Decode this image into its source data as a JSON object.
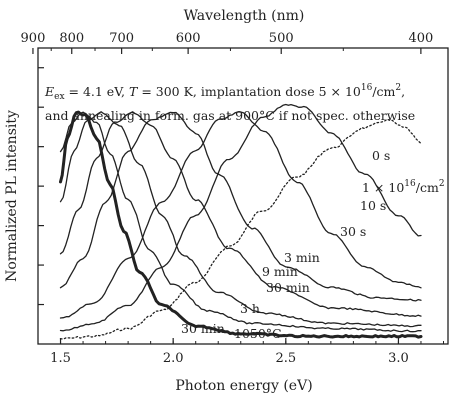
{
  "chart_data": {
    "type": "line",
    "xlabel": "Photon energy (eV)",
    "x2label": "Wavelength (nm)",
    "ylabel": "Normalized PL intensity",
    "xlim": [
      1.4,
      3.22
    ],
    "ylim": [
      0,
      1.15
    ],
    "x_ticks": [
      1.5,
      2.0,
      2.5,
      3.0
    ],
    "x_tick_labels": [
      "1.5",
      "2.0",
      "2.5",
      "3.0"
    ],
    "wavelength_ticks": [
      900,
      800,
      700,
      600,
      500,
      400
    ],
    "wavelength_tick_labels": [
      "900",
      "800",
      "700",
      "600",
      "500",
      "400"
    ],
    "y_tick_count": 7,
    "annotation_lines": [
      "E_ex = 4.1 eV, T = 300 K, implantation dose 5 × 10^16/cm^2,",
      "and annealing in form. gas at 900°C if not spec. otherwise"
    ],
    "annotation": {
      "l1_e": "E",
      "l1_ex": "ex",
      "l1_a": " = 4.1 eV, ",
      "l1_t": "T",
      "l1_b": " = 300 K, implantation dose 5 × 10",
      "l1_exp": "16",
      "l1_c": "/cm",
      "l1_exp2": "2",
      "l1_d": ",",
      "l2": "and annealing in form. gas at 900°C if not spec. otherwise"
    },
    "dose_label": {
      "base": "1 × 10",
      "exp": "16",
      "unit": "/cm",
      "exp2": "2"
    },
    "series": [
      {
        "name": "0 s",
        "style": "dotted",
        "points": [
          [
            1.5,
            0.02
          ],
          [
            1.65,
            0.03
          ],
          [
            1.8,
            0.06
          ],
          [
            1.95,
            0.13
          ],
          [
            2.1,
            0.24
          ],
          [
            2.25,
            0.38
          ],
          [
            2.4,
            0.52
          ],
          [
            2.55,
            0.65
          ],
          [
            2.7,
            0.76
          ],
          [
            2.85,
            0.84
          ],
          [
            2.95,
            0.87
          ],
          [
            3.03,
            0.84
          ],
          [
            3.1,
            0.78
          ]
        ]
      },
      {
        "name": "10 s",
        "style": "solid",
        "points": [
          [
            1.5,
            0.05
          ],
          [
            1.65,
            0.08
          ],
          [
            1.8,
            0.15
          ],
          [
            1.95,
            0.3
          ],
          [
            2.1,
            0.5
          ],
          [
            2.25,
            0.72
          ],
          [
            2.4,
            0.88
          ],
          [
            2.5,
            0.93
          ],
          [
            2.58,
            0.92
          ],
          [
            2.7,
            0.82
          ],
          [
            2.85,
            0.66
          ],
          [
            3.0,
            0.5
          ],
          [
            3.1,
            0.42
          ]
        ]
      },
      {
        "name": "30 s",
        "style": "solid",
        "points": [
          [
            1.5,
            0.1
          ],
          [
            1.65,
            0.16
          ],
          [
            1.8,
            0.33
          ],
          [
            1.95,
            0.55
          ],
          [
            2.1,
            0.75
          ],
          [
            2.2,
            0.87
          ],
          [
            2.3,
            0.9
          ],
          [
            2.4,
            0.83
          ],
          [
            2.55,
            0.63
          ],
          [
            2.7,
            0.43
          ],
          [
            2.85,
            0.3
          ],
          [
            3.0,
            0.24
          ],
          [
            3.1,
            0.22
          ]
        ]
      },
      {
        "name": "3 min",
        "style": "solid",
        "points": [
          [
            1.5,
            0.22
          ],
          [
            1.6,
            0.33
          ],
          [
            1.7,
            0.55
          ],
          [
            1.8,
            0.75
          ],
          [
            1.9,
            0.87
          ],
          [
            2.0,
            0.9
          ],
          [
            2.1,
            0.82
          ],
          [
            2.2,
            0.66
          ],
          [
            2.35,
            0.45
          ],
          [
            2.5,
            0.3
          ],
          [
            2.7,
            0.22
          ],
          [
            2.9,
            0.18
          ],
          [
            3.1,
            0.17
          ]
        ]
      },
      {
        "name": "9 min",
        "style": "solid",
        "points": [
          [
            1.5,
            0.35
          ],
          [
            1.58,
            0.52
          ],
          [
            1.66,
            0.72
          ],
          [
            1.74,
            0.86
          ],
          [
            1.82,
            0.9
          ],
          [
            1.9,
            0.85
          ],
          [
            2.0,
            0.72
          ],
          [
            2.1,
            0.56
          ],
          [
            2.25,
            0.37
          ],
          [
            2.45,
            0.22
          ],
          [
            2.7,
            0.14
          ],
          [
            3.1,
            0.11
          ]
        ]
      },
      {
        "name": "30 min",
        "style": "solid",
        "points": [
          [
            1.5,
            0.55
          ],
          [
            1.56,
            0.75
          ],
          [
            1.62,
            0.87
          ],
          [
            1.68,
            0.9
          ],
          [
            1.76,
            0.85
          ],
          [
            1.85,
            0.7
          ],
          [
            1.95,
            0.5
          ],
          [
            2.05,
            0.34
          ],
          [
            2.2,
            0.2
          ],
          [
            2.4,
            0.12
          ],
          [
            2.7,
            0.08
          ],
          [
            3.1,
            0.07
          ]
        ]
      },
      {
        "name": "3 h",
        "style": "solid",
        "points": [
          [
            1.5,
            0.75
          ],
          [
            1.55,
            0.86
          ],
          [
            1.6,
            0.9
          ],
          [
            1.66,
            0.86
          ],
          [
            1.72,
            0.74
          ],
          [
            1.8,
            0.56
          ],
          [
            1.9,
            0.36
          ],
          [
            2.0,
            0.23
          ],
          [
            2.15,
            0.13
          ],
          [
            2.35,
            0.08
          ],
          [
            2.7,
            0.06
          ],
          [
            3.1,
            0.05
          ]
        ]
      },
      {
        "name": "30 min 1050°C",
        "style": "thick",
        "points": [
          [
            1.5,
            0.63
          ],
          [
            1.53,
            0.8
          ],
          [
            1.57,
            0.9
          ],
          [
            1.61,
            0.89
          ],
          [
            1.66,
            0.8
          ],
          [
            1.72,
            0.62
          ],
          [
            1.78,
            0.44
          ],
          [
            1.85,
            0.28
          ],
          [
            1.95,
            0.15
          ],
          [
            2.1,
            0.07
          ],
          [
            2.3,
            0.04
          ],
          [
            2.6,
            0.03
          ],
          [
            3.1,
            0.03
          ]
        ]
      }
    ],
    "grid": false,
    "legend": "none (curves labelled inline)"
  }
}
